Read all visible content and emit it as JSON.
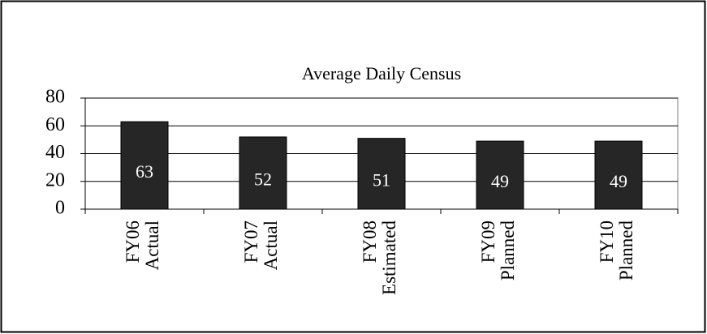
{
  "chart_data": {
    "type": "bar",
    "title": "Average Daily Census",
    "categories": [
      "FY06 Actual",
      "FY07 Actual",
      "FY08 Estimated",
      "FY09 Planned",
      "FY10 Planned"
    ],
    "values": [
      63,
      52,
      51,
      49,
      49
    ],
    "color": "#262626",
    "ylim": [
      0,
      80
    ],
    "yticks": [
      0,
      20,
      40,
      60,
      80
    ],
    "grid": true
  }
}
